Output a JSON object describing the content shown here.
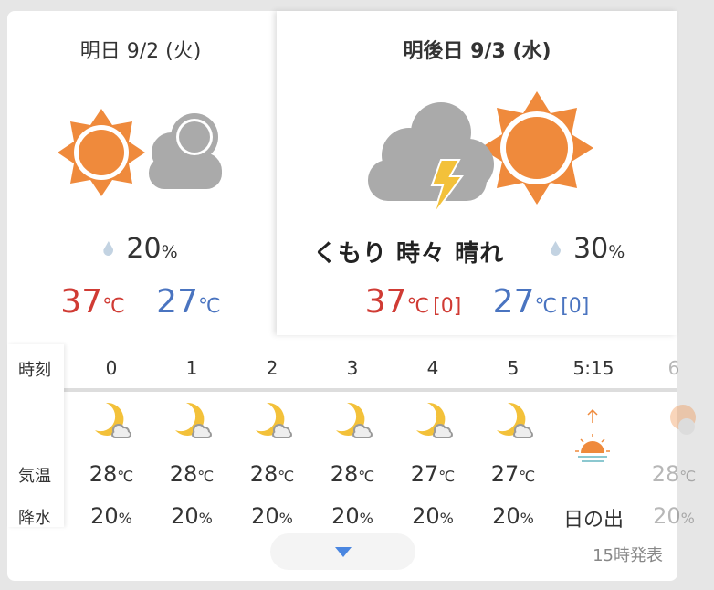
{
  "tomorrow": {
    "title": "明日 9/2 (火)",
    "weather_icon": "sun-then-cloud",
    "pop": "20",
    "pop_unit": "%",
    "high": "37",
    "low": "27",
    "temp_unit": "℃"
  },
  "day_after": {
    "title": "明後日 9/3 (水)",
    "weather_icon": "thunder-cloud-then-sun",
    "weather": "くもり 時々 晴れ",
    "pop": "30",
    "pop_unit": "%",
    "high": "37",
    "high_diff": "[0]",
    "low": "27",
    "low_diff": "[0]",
    "temp_unit": "℃"
  },
  "hourly": {
    "labels": {
      "time": "時刻",
      "temp": "気温",
      "precip": "降水"
    },
    "columns": [
      {
        "time": "0",
        "icon": "moon-cloud",
        "temp": "28",
        "precip": "20"
      },
      {
        "time": "1",
        "icon": "moon-cloud",
        "temp": "28",
        "precip": "20"
      },
      {
        "time": "2",
        "icon": "moon-cloud",
        "temp": "28",
        "precip": "20"
      },
      {
        "time": "3",
        "icon": "moon-cloud",
        "temp": "28",
        "precip": "20"
      },
      {
        "time": "4",
        "icon": "moon-cloud",
        "temp": "27",
        "precip": "20"
      },
      {
        "time": "5",
        "icon": "moon-cloud",
        "temp": "27",
        "precip": "20"
      },
      {
        "time": "5:15",
        "icon": "sunrise",
        "event": "日の出"
      },
      {
        "time": "6",
        "icon": "sun-cloud",
        "temp": "28",
        "precip": "20"
      }
    ],
    "temp_unit": "℃",
    "precip_unit": "%"
  },
  "footer": {
    "issued": "15時発表",
    "expand_icon": "triangle-down"
  },
  "colors": {
    "high": "#d03b34",
    "low": "#4a74c0",
    "sun": "#ef8a3c",
    "moon": "#f3c13a",
    "cloud": "#aaaaaa",
    "accent": "#4a86e0"
  }
}
